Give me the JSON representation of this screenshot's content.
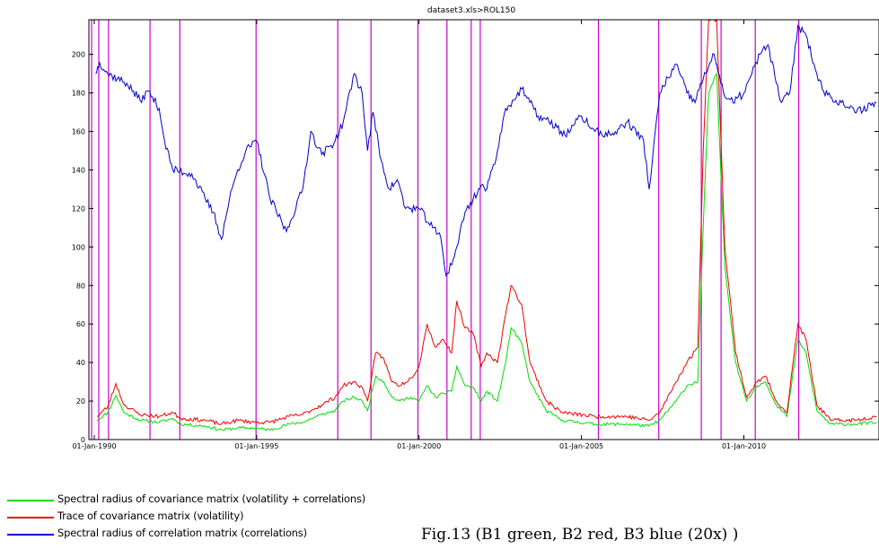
{
  "chart_data": {
    "type": "line",
    "title": "dataset3.xls>ROL150",
    "xlabel": "",
    "ylabel": "",
    "xlim": [
      "1989-11-01",
      "2014-03-01"
    ],
    "ylim": [
      0,
      218
    ],
    "x_ticks": [
      {
        "date": "1990-01-01",
        "label": "01-Jan-1990"
      },
      {
        "date": "1995-01-01",
        "label": "01-Jan-1995"
      },
      {
        "date": "2000-01-01",
        "label": "01-Jan-2000"
      },
      {
        "date": "2005-01-01",
        "label": "01-Jan-2005"
      },
      {
        "date": "2010-01-01",
        "label": "01-Jan-2010"
      }
    ],
    "y_ticks": [
      0,
      20,
      40,
      60,
      80,
      100,
      120,
      140,
      160,
      180,
      200
    ],
    "vlines": [
      "1989-12-01",
      "1990-02-20",
      "1990-06-10",
      "1991-09-20",
      "1992-08-20",
      "1994-12-25",
      "1997-07-01",
      "1998-07-10",
      "1999-12-20",
      "2000-11-10",
      "2001-08-10",
      "2001-11-20",
      "2005-07-10",
      "2007-05-20",
      "2008-09-10",
      "2009-04-20",
      "2010-05-10",
      "2011-09-10"
    ],
    "vline_color": "#cc00cc",
    "series": [
      {
        "name": "Spectral radius of covariance matrix (volatility + correlations)",
        "color": "#00dd00",
        "points": [
          [
            "1990-02-01",
            10
          ],
          [
            "1990-06-01",
            14
          ],
          [
            "1990-09-01",
            23
          ],
          [
            "1990-12-01",
            14
          ],
          [
            "1991-06-01",
            10
          ],
          [
            "1992-01-01",
            9
          ],
          [
            "1992-06-01",
            11
          ],
          [
            "1992-09-01",
            8
          ],
          [
            "1993-06-01",
            7
          ],
          [
            "1993-12-01",
            5
          ],
          [
            "1994-06-01",
            6
          ],
          [
            "1994-12-01",
            6
          ],
          [
            "1995-06-01",
            5
          ],
          [
            "1996-01-01",
            8
          ],
          [
            "1996-06-01",
            9
          ],
          [
            "1997-01-01",
            13
          ],
          [
            "1997-06-01",
            15
          ],
          [
            "1997-09-01",
            20
          ],
          [
            "1998-01-01",
            22
          ],
          [
            "1998-04-01",
            20
          ],
          [
            "1998-06-01",
            15
          ],
          [
            "1998-09-01",
            33
          ],
          [
            "1998-12-01",
            30
          ],
          [
            "1999-03-01",
            22
          ],
          [
            "1999-06-01",
            20
          ],
          [
            "1999-10-01",
            22
          ],
          [
            "2000-01-01",
            20
          ],
          [
            "2000-04-01",
            28
          ],
          [
            "2000-07-01",
            22
          ],
          [
            "2000-10-01",
            24
          ],
          [
            "2001-01-01",
            25
          ],
          [
            "2001-03-01",
            38
          ],
          [
            "2001-06-01",
            28
          ],
          [
            "2001-09-01",
            27
          ],
          [
            "2001-12-01",
            20
          ],
          [
            "2002-02-01",
            25
          ],
          [
            "2002-06-01",
            20
          ],
          [
            "2002-09-01",
            40
          ],
          [
            "2002-11-01",
            58
          ],
          [
            "2003-03-01",
            50
          ],
          [
            "2003-06-01",
            30
          ],
          [
            "2003-12-01",
            15
          ],
          [
            "2004-06-01",
            10
          ],
          [
            "2005-06-01",
            8
          ],
          [
            "2006-06-01",
            8
          ],
          [
            "2007-02-01",
            7
          ],
          [
            "2007-06-01",
            10
          ],
          [
            "2007-12-01",
            20
          ],
          [
            "2008-04-01",
            28
          ],
          [
            "2008-08-01",
            30
          ],
          [
            "2008-10-01",
            110
          ],
          [
            "2008-12-01",
            180
          ],
          [
            "2009-03-01",
            190
          ],
          [
            "2009-06-01",
            90
          ],
          [
            "2009-10-01",
            40
          ],
          [
            "2010-02-01",
            20
          ],
          [
            "2010-06-01",
            28
          ],
          [
            "2010-09-01",
            30
          ],
          [
            "2011-01-01",
            18
          ],
          [
            "2011-05-01",
            12
          ],
          [
            "2011-09-01",
            52
          ],
          [
            "2011-12-01",
            45
          ],
          [
            "2012-04-01",
            15
          ],
          [
            "2012-09-01",
            8
          ],
          [
            "2013-06-01",
            8
          ],
          [
            "2014-02-01",
            9
          ]
        ]
      },
      {
        "name": "Trace of covariance matrix (volatility)",
        "color": "#ee0000",
        "points": [
          [
            "1990-02-01",
            12
          ],
          [
            "1990-06-01",
            17
          ],
          [
            "1990-09-01",
            29
          ],
          [
            "1990-12-01",
            18
          ],
          [
            "1991-06-01",
            13
          ],
          [
            "1992-01-01",
            12
          ],
          [
            "1992-06-01",
            14
          ],
          [
            "1992-09-01",
            11
          ],
          [
            "1993-06-01",
            10
          ],
          [
            "1993-12-01",
            8
          ],
          [
            "1994-06-01",
            10
          ],
          [
            "1994-12-01",
            9
          ],
          [
            "1995-06-01",
            9
          ],
          [
            "1996-01-01",
            12
          ],
          [
            "1996-06-01",
            13
          ],
          [
            "1997-01-01",
            18
          ],
          [
            "1997-06-01",
            22
          ],
          [
            "1997-09-01",
            28
          ],
          [
            "1998-01-01",
            30
          ],
          [
            "1998-04-01",
            27
          ],
          [
            "1998-06-01",
            20
          ],
          [
            "1998-09-01",
            45
          ],
          [
            "1998-12-01",
            42
          ],
          [
            "1999-03-01",
            30
          ],
          [
            "1999-06-01",
            28
          ],
          [
            "1999-10-01",
            32
          ],
          [
            "2000-01-01",
            38
          ],
          [
            "2000-04-01",
            60
          ],
          [
            "2000-07-01",
            48
          ],
          [
            "2000-10-01",
            52
          ],
          [
            "2001-01-01",
            45
          ],
          [
            "2001-03-01",
            72
          ],
          [
            "2001-06-01",
            58
          ],
          [
            "2001-09-01",
            55
          ],
          [
            "2001-12-01",
            38
          ],
          [
            "2002-02-01",
            45
          ],
          [
            "2002-06-01",
            40
          ],
          [
            "2002-09-01",
            65
          ],
          [
            "2002-11-01",
            80
          ],
          [
            "2003-03-01",
            70
          ],
          [
            "2003-06-01",
            40
          ],
          [
            "2003-12-01",
            20
          ],
          [
            "2004-06-01",
            14
          ],
          [
            "2005-06-01",
            12
          ],
          [
            "2006-06-01",
            12
          ],
          [
            "2007-02-01",
            10
          ],
          [
            "2007-06-01",
            14
          ],
          [
            "2007-12-01",
            30
          ],
          [
            "2008-04-01",
            40
          ],
          [
            "2008-08-01",
            48
          ],
          [
            "2008-10-01",
            150
          ],
          [
            "2008-12-01",
            218
          ],
          [
            "2009-03-01",
            218
          ],
          [
            "2009-06-01",
            100
          ],
          [
            "2009-10-01",
            45
          ],
          [
            "2010-02-01",
            22
          ],
          [
            "2010-06-01",
            30
          ],
          [
            "2010-09-01",
            33
          ],
          [
            "2011-01-01",
            20
          ],
          [
            "2011-05-01",
            14
          ],
          [
            "2011-09-01",
            60
          ],
          [
            "2011-12-01",
            52
          ],
          [
            "2012-04-01",
            18
          ],
          [
            "2012-09-01",
            10
          ],
          [
            "2013-06-01",
            10
          ],
          [
            "2014-02-01",
            12
          ]
        ]
      },
      {
        "name": "Spectral radius of correlation matrix (correlations)",
        "color": "#0000cc",
        "points": [
          [
            "1990-01-15",
            190
          ],
          [
            "1990-03-01",
            196
          ],
          [
            "1990-06-01",
            190
          ],
          [
            "1991-01-01",
            185
          ],
          [
            "1991-06-01",
            176
          ],
          [
            "1991-09-01",
            181
          ],
          [
            "1992-01-01",
            172
          ],
          [
            "1992-03-01",
            155
          ],
          [
            "1992-06-01",
            140
          ],
          [
            "1993-01-01",
            138
          ],
          [
            "1993-06-01",
            125
          ],
          [
            "1993-09-01",
            118
          ],
          [
            "1993-12-01",
            104
          ],
          [
            "1994-03-01",
            125
          ],
          [
            "1994-06-01",
            140
          ],
          [
            "1994-09-01",
            150
          ],
          [
            "1995-01-01",
            155
          ],
          [
            "1995-06-01",
            125
          ],
          [
            "1995-12-01",
            108
          ],
          [
            "1996-06-01",
            130
          ],
          [
            "1996-09-01",
            160
          ],
          [
            "1997-01-01",
            148
          ],
          [
            "1997-06-01",
            155
          ],
          [
            "1997-09-01",
            165
          ],
          [
            "1998-01-01",
            190
          ],
          [
            "1998-04-01",
            180
          ],
          [
            "1998-06-01",
            150
          ],
          [
            "1998-08-01",
            170
          ],
          [
            "1998-11-01",
            145
          ],
          [
            "1999-02-01",
            130
          ],
          [
            "1999-05-01",
            135
          ],
          [
            "1999-08-01",
            120
          ],
          [
            "2000-01-01",
            120
          ],
          [
            "2000-06-01",
            110
          ],
          [
            "2000-09-01",
            105
          ],
          [
            "2000-11-01",
            85
          ],
          [
            "2001-02-01",
            95
          ],
          [
            "2001-06-01",
            118
          ],
          [
            "2001-09-01",
            125
          ],
          [
            "2001-12-01",
            132
          ],
          [
            "2002-02-01",
            130
          ],
          [
            "2002-06-01",
            150
          ],
          [
            "2002-09-01",
            172
          ],
          [
            "2003-01-01",
            178
          ],
          [
            "2003-03-01",
            182
          ],
          [
            "2003-06-01",
            175
          ],
          [
            "2003-09-01",
            168
          ],
          [
            "2004-01-01",
            165
          ],
          [
            "2004-04-01",
            162
          ],
          [
            "2004-07-01",
            158
          ],
          [
            "2004-10-01",
            163
          ],
          [
            "2005-01-01",
            168
          ],
          [
            "2005-06-01",
            160
          ],
          [
            "2005-12-01",
            158
          ],
          [
            "2006-06-01",
            165
          ],
          [
            "2006-12-01",
            155
          ],
          [
            "2007-02-01",
            130
          ],
          [
            "2007-06-01",
            180
          ],
          [
            "2007-12-01",
            195
          ],
          [
            "2008-04-01",
            180
          ],
          [
            "2008-07-01",
            175
          ],
          [
            "2008-09-01",
            185
          ],
          [
            "2008-11-01",
            190
          ],
          [
            "2009-02-01",
            200
          ],
          [
            "2009-03-01",
            195
          ],
          [
            "2009-06-01",
            178
          ],
          [
            "2009-09-01",
            175
          ],
          [
            "2010-01-01",
            180
          ],
          [
            "2010-04-01",
            190
          ],
          [
            "2010-07-01",
            200
          ],
          [
            "2010-10-01",
            205
          ],
          [
            "2011-01-01",
            185
          ],
          [
            "2011-03-01",
            175
          ],
          [
            "2011-06-01",
            180
          ],
          [
            "2011-09-01",
            215
          ],
          [
            "2011-12-01",
            210
          ],
          [
            "2012-03-01",
            195
          ],
          [
            "2012-06-01",
            182
          ],
          [
            "2012-09-01",
            178
          ],
          [
            "2013-01-01",
            175
          ],
          [
            "2013-06-01",
            170
          ],
          [
            "2014-02-01",
            175
          ]
        ]
      }
    ]
  },
  "legend": {
    "items": [
      {
        "label": "Spectral radius of covariance matrix (volatility + correlations)",
        "color": "#00dd00"
      },
      {
        "label": "Trace of covariance matrix (volatility)",
        "color": "#ee0000"
      },
      {
        "label": "Spectral radius of correlation matrix (correlations)",
        "color": "#0000cc"
      }
    ]
  },
  "caption": "Fig.13 (B1 green, B2 red, B3 blue (20x) )"
}
